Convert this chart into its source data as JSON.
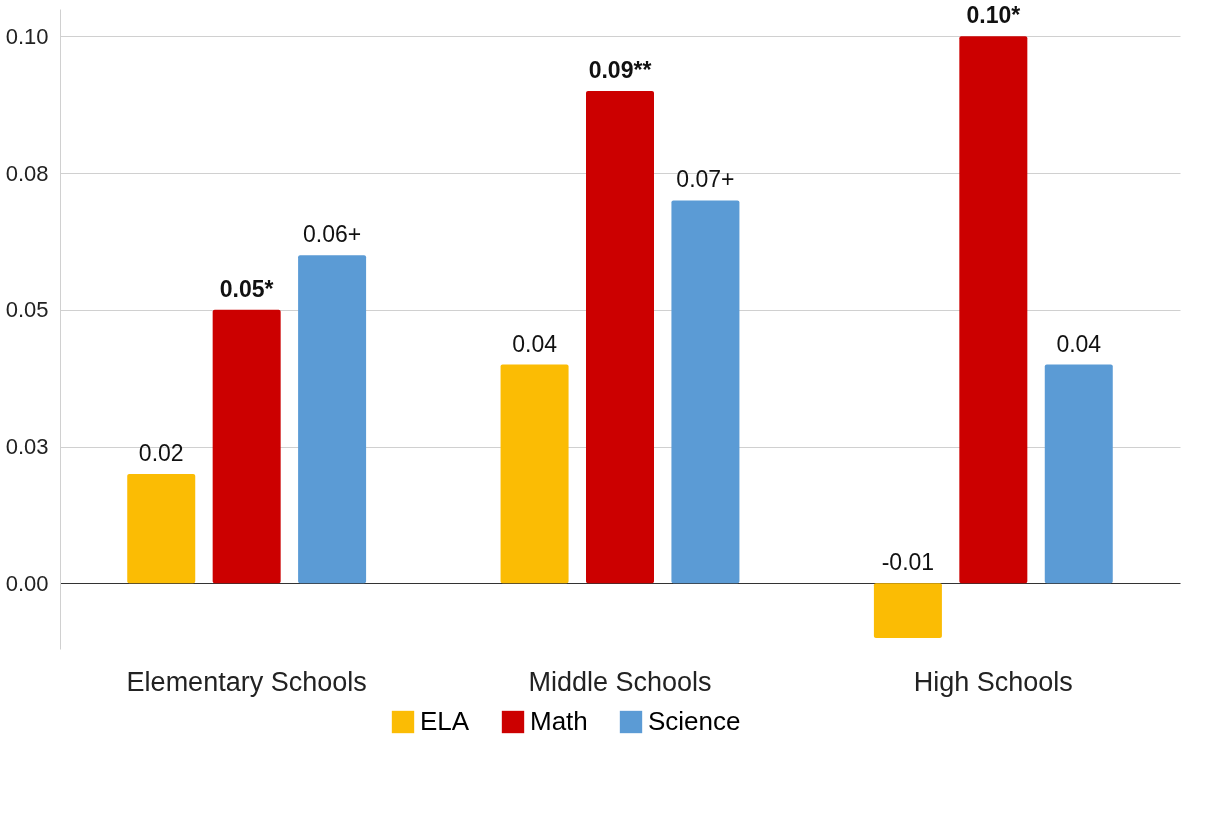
{
  "chart_data": {
    "type": "bar",
    "categories": [
      "Elementary Schools",
      "Middle Schools",
      "High Schools"
    ],
    "series": [
      {
        "name": "ELA",
        "color": "#fbbc04",
        "values": [
          0.02,
          0.04,
          -0.01
        ],
        "value_labels": [
          "0.02",
          "0.04",
          "-0.01"
        ]
      },
      {
        "name": "Math",
        "color": "#cc0000",
        "values": [
          0.05,
          0.09,
          0.1
        ],
        "value_labels": [
          "0.05*",
          "0.09**",
          "0.10*"
        ]
      },
      {
        "name": "Science",
        "color": "#5b9bd5",
        "values": [
          0.06,
          0.07,
          0.04
        ],
        "value_labels": [
          "0.06+",
          "0.07+",
          "0.04"
        ]
      }
    ],
    "ylim": [
      -0.012,
      0.105
    ],
    "yticks": [
      {
        "value": 0,
        "label": "0.00"
      },
      {
        "value": 0.025,
        "label": "0.03"
      },
      {
        "value": 0.05,
        "label": "0.05"
      },
      {
        "value": 0.075,
        "label": "0.08"
      },
      {
        "value": 0.1,
        "label": "0.10"
      }
    ],
    "grid": "y",
    "legend": "bottom"
  }
}
